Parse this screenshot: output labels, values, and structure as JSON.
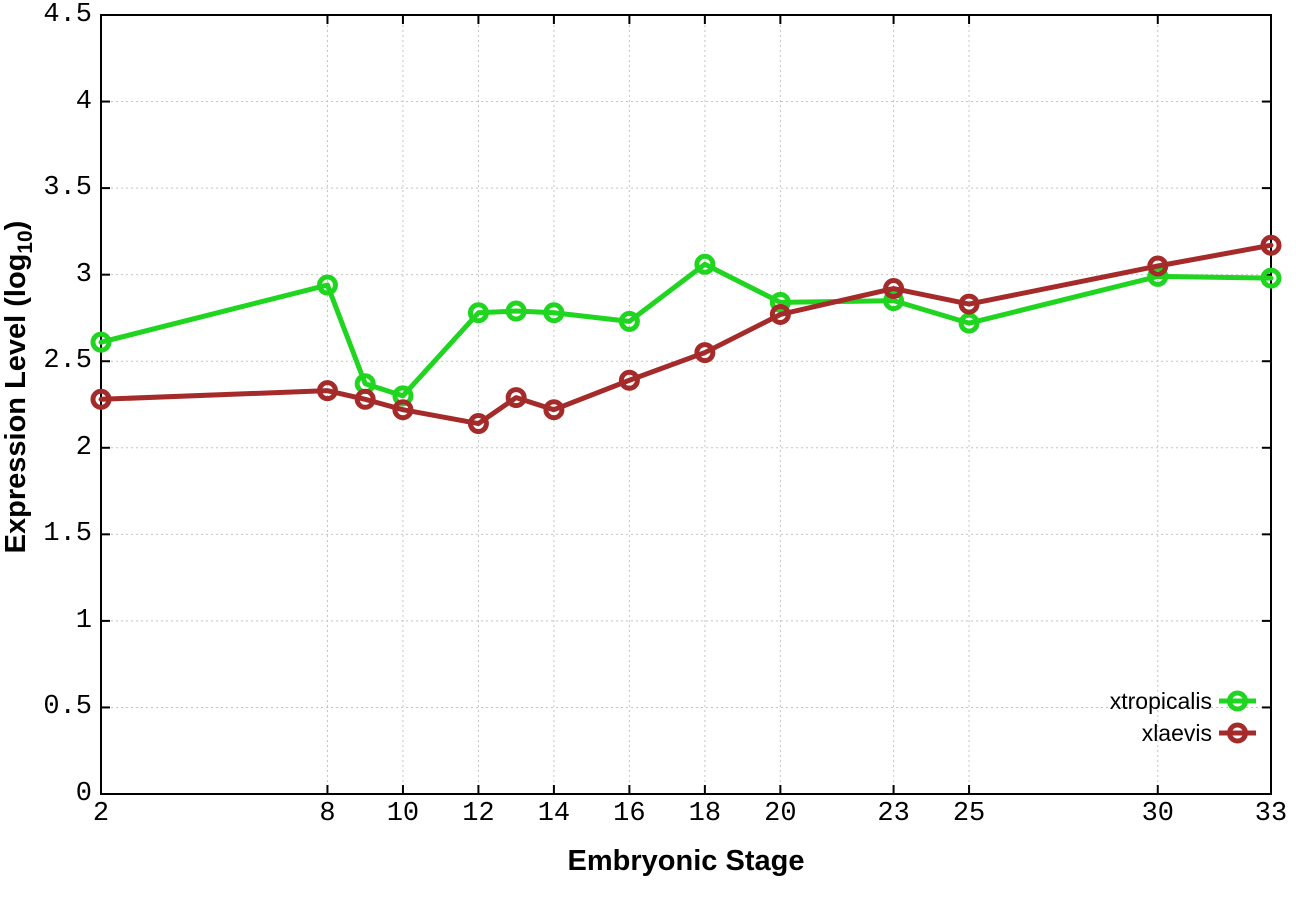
{
  "chart_data": {
    "type": "line",
    "title": "",
    "xlabel": "Embryonic Stage",
    "ylabel_prefix": "Expression Level (log",
    "ylabel_sub": "10",
    "ylabel_suffix": ")",
    "xlim": [
      2,
      33
    ],
    "ylim": [
      0,
      4.5
    ],
    "grid": true,
    "legend_position": "inside-bottom-right",
    "marker": "open-circle",
    "xticks": {
      "values": [
        2,
        8,
        10,
        12,
        14,
        16,
        18,
        20,
        23,
        25,
        30,
        33
      ],
      "labels": [
        "2",
        "8",
        "10",
        "12",
        "14",
        "16",
        "18",
        "20",
        "23",
        "25",
        "30",
        "33"
      ]
    },
    "yticks": {
      "values": [
        0,
        0.5,
        1,
        1.5,
        2,
        2.5,
        3,
        3.5,
        4,
        4.5
      ],
      "labels": [
        "0",
        "0.5",
        "1",
        "1.5",
        "2",
        "2.5",
        "3",
        "3.5",
        "4",
        "4.5"
      ]
    },
    "x": [
      2,
      8,
      9,
      10,
      12,
      13,
      14,
      16,
      18,
      20,
      23,
      25,
      30,
      33
    ],
    "series": [
      {
        "name": "xtropicalis",
        "color": "#1fd51f",
        "values": [
          2.61,
          2.94,
          2.37,
          2.3,
          2.78,
          2.79,
          2.78,
          2.73,
          3.06,
          2.84,
          2.85,
          2.72,
          2.99,
          2.98
        ]
      },
      {
        "name": "xlaevis",
        "color": "#a52b2b",
        "values": [
          2.28,
          2.33,
          2.28,
          2.22,
          2.14,
          2.29,
          2.22,
          2.39,
          2.55,
          2.77,
          2.92,
          2.83,
          3.05,
          3.17
        ]
      }
    ]
  },
  "colors": {
    "background": "#ffffff",
    "axis": "#000000",
    "grid": "#c4c4c4",
    "xtropicalis": "#1fd51f",
    "xlaevis": "#a52b2b"
  }
}
